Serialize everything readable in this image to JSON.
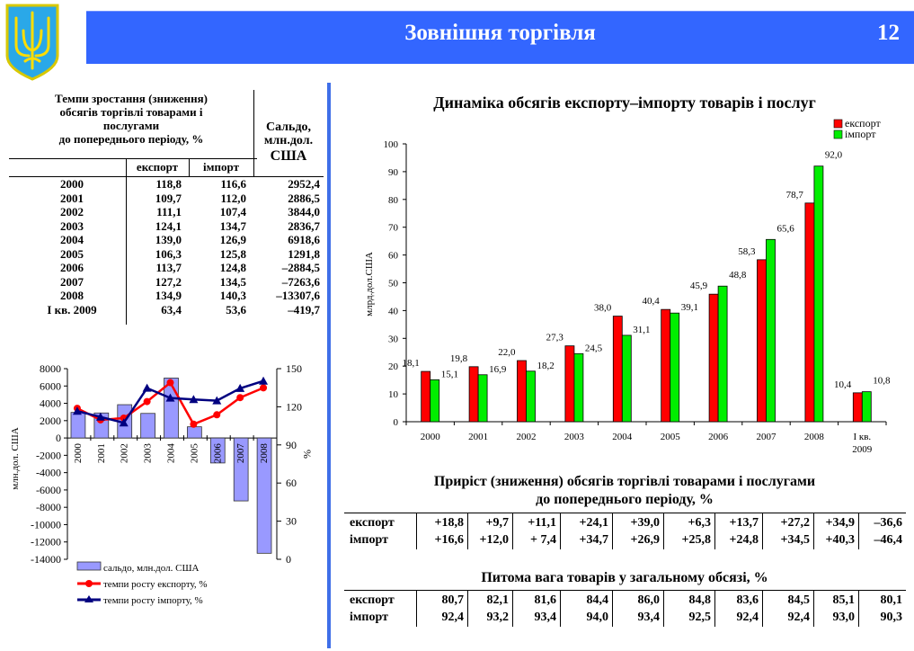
{
  "header": {
    "title": "Зовнішня торгівля",
    "page_number": "12"
  },
  "colors": {
    "header_bg": "#3366ff",
    "export": "#ff0000",
    "import": "#00ee00",
    "saldo": "#9999ff",
    "export_line": "#ff0000",
    "import_line": "#000080"
  },
  "rate_table": {
    "title": "Темпи зростання (зниження) обсягів торгівлі товарами і послугами до попереднього періоду, %",
    "title_lines": [
      "Темпи зростання (зниження)",
      "обсягів торгівлі товарами і",
      "послугами",
      "до попереднього періоду, %"
    ],
    "saldo_header_lines": [
      "Сальдо,",
      "млн.дол.",
      "США"
    ],
    "col_export": "експорт",
    "col_import": "імпорт",
    "rows": [
      {
        "period": "2000",
        "export": "118,8",
        "import": "116,6",
        "saldo": "2952,4"
      },
      {
        "period": "2001",
        "export": "109,7",
        "import": "112,0",
        "saldo": "2886,5"
      },
      {
        "period": "2002",
        "export": "111,1",
        "import": "107,4",
        "saldo": "3844,0"
      },
      {
        "period": "2003",
        "export": "124,1",
        "import": "134,7",
        "saldo": "2836,7"
      },
      {
        "period": "2004",
        "export": "139,0",
        "import": "126,9",
        "saldo": "6918,6"
      },
      {
        "period": "2005",
        "export": "106,3",
        "import": "125,8",
        "saldo": "1291,8"
      },
      {
        "period": "2006",
        "export": "113,7",
        "import": "124,8",
        "saldo": "–2884,5"
      },
      {
        "period": "2007",
        "export": "127,2",
        "import": "134,5",
        "saldo": "–7263,6"
      },
      {
        "period": "2008",
        "export": "134,9",
        "import": "140,3",
        "saldo": "–13307,6"
      },
      {
        "period": "I кв. 2009",
        "export": "63,4",
        "import": "53,6",
        "saldo": "–419,7"
      }
    ]
  },
  "chart_data": [
    {
      "type": "bar",
      "title": "Динаміка обсягів експорту–імпорту товарів і послуг",
      "ylabel": "млрд.дол.США",
      "ylim": [
        0,
        100
      ],
      "yticks": [
        "0",
        "10",
        "20",
        "30",
        "40",
        "50",
        "60",
        "70",
        "80",
        "90",
        "100"
      ],
      "categories": [
        "2000",
        "2001",
        "2002",
        "2003",
        "2004",
        "2005",
        "2006",
        "2007",
        "2008",
        "I кв. 2009"
      ],
      "category_lines": [
        [
          "2000"
        ],
        [
          "2001"
        ],
        [
          "2002"
        ],
        [
          "2003"
        ],
        [
          "2004"
        ],
        [
          "2005"
        ],
        [
          "2006"
        ],
        [
          "2007"
        ],
        [
          "2008"
        ],
        [
          "I кв.",
          "2009"
        ]
      ],
      "legend_position": "top-right",
      "series": [
        {
          "name": "експорт",
          "values": [
            18.1,
            19.8,
            22.0,
            27.3,
            38.0,
            40.4,
            45.9,
            58.3,
            78.7,
            10.4
          ],
          "labels": [
            "18,1",
            "19,8",
            "22,0",
            "27,3",
            "38,0",
            "40,4",
            "45,9",
            "58,3",
            "78,7",
            "10,4"
          ]
        },
        {
          "name": "імпорт",
          "values": [
            15.1,
            16.9,
            18.2,
            24.5,
            31.1,
            39.1,
            48.8,
            65.6,
            92.0,
            10.8
          ],
          "labels": [
            "15,1",
            "16,9",
            "18,2",
            "24,5",
            "31,1",
            "39,1",
            "48,8",
            "65,6",
            "92,0",
            "10,8"
          ]
        }
      ]
    },
    {
      "type": "bar+line",
      "ylabel_left": "млн.дол. США",
      "ylabel_right": "%",
      "ylim_left": [
        -14000,
        8000
      ],
      "ylim_right": [
        0,
        150
      ],
      "yticks_left": [
        "8000",
        "6000",
        "4000",
        "2000",
        "0",
        "-2000",
        "-4000",
        "-6000",
        "-8000",
        "-10000",
        "-12000",
        "-14000"
      ],
      "yticks_right": [
        "150",
        "120",
        "90",
        "60",
        "30",
        "0"
      ],
      "categories": [
        "2000",
        "2001",
        "2002",
        "2003",
        "2004",
        "2005",
        "2006",
        "2007",
        "2008"
      ],
      "legend_position": "bottom",
      "series": [
        {
          "name": "сальдо, млн.дол. США",
          "kind": "bar",
          "axis": "left",
          "values": [
            2952.4,
            2886.5,
            3844.0,
            2836.7,
            6918.6,
            1291.8,
            -2884.5,
            -7263.6,
            -13307.6
          ]
        },
        {
          "name": "темпи росту експорту, %",
          "kind": "line",
          "marker": "circle",
          "axis": "right",
          "values": [
            118.8,
            109.7,
            111.1,
            124.1,
            139.0,
            106.3,
            113.7,
            127.2,
            134.9
          ]
        },
        {
          "name": "темпи росту імпорту, %",
          "kind": "line",
          "marker": "triangle",
          "axis": "right",
          "values": [
            116.6,
            112.0,
            107.4,
            134.7,
            126.9,
            125.8,
            124.8,
            134.5,
            140.3
          ]
        }
      ]
    }
  ],
  "growth_table": {
    "title_lines": [
      "Приріст (зниження) обсягів торгівлі товарами і послугами",
      "до попереднього періоду, %"
    ],
    "rows": [
      {
        "label": "експорт",
        "values": [
          "+18,8",
          "+9,7",
          "+11,1",
          "+24,1",
          "+39,0",
          "+6,3",
          "+13,7",
          "+27,2",
          "+34,9",
          "–36,6"
        ]
      },
      {
        "label": "імпорт",
        "values": [
          "+16,6",
          "+12,0",
          "+ 7,4",
          "+34,7",
          "+26,9",
          "+25,8",
          "+24,8",
          "+34,5",
          "+40,3",
          "–46,4"
        ]
      }
    ]
  },
  "share_table": {
    "title": "Питома вага товарів у загальному обсязі, %",
    "rows": [
      {
        "label": "експорт",
        "values": [
          "80,7",
          "82,1",
          "81,6",
          "84,4",
          "86,0",
          "84,8",
          "83,6",
          "84,5",
          "85,1",
          "80,1"
        ]
      },
      {
        "label": "імпорт",
        "values": [
          "92,4",
          "93,2",
          "93,4",
          "94,0",
          "93,4",
          "92,5",
          "92,4",
          "92,4",
          "93,0",
          "90,3"
        ]
      }
    ]
  }
}
